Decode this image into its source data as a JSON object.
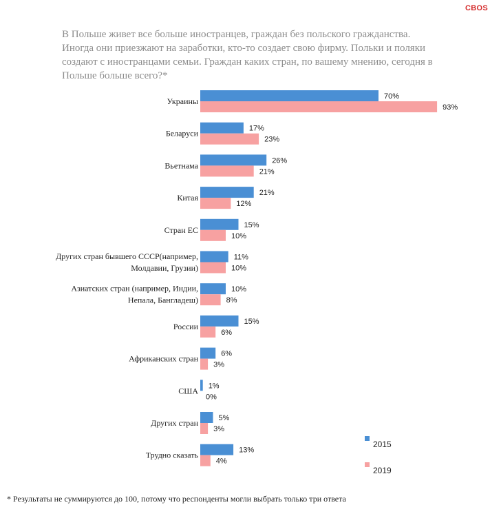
{
  "brand": "CBOS",
  "question": "В Польше живет все больше иностранцев, граждан без польского гражданства. Иногда они приезжают на заработки, кто-то создает свою фирму. Польки и поляки создают с иностранцами семьи. Граждан каких стран, по вашему мнению, сегодня в Польше больше всего?*",
  "footnote": "*  Результаты не суммируются до 100, потому что респонденты могли выбрать только три ответа",
  "colors": {
    "s2015": "#4a8fd4",
    "s2019": "#f7a1a1"
  },
  "chart_data": {
    "type": "bar",
    "orientation": "horizontal",
    "categories": [
      [
        "Украины"
      ],
      [
        "Беларуси"
      ],
      [
        "Вьетнама"
      ],
      [
        "Китая"
      ],
      [
        "Стран ЕС"
      ],
      [
        "Других стран бывшего СССР(например,",
        "Молдавии, Грузии)"
      ],
      [
        "Азиатских стран (например, Индии,",
        "Непала, Бангладеш)"
      ],
      [
        "России"
      ],
      [
        "Африканских стран"
      ],
      [
        "США"
      ],
      [
        "Других стран"
      ],
      [
        "Трудно сказать"
      ]
    ],
    "series": [
      {
        "name": "2015",
        "values": [
          70,
          17,
          26,
          21,
          15,
          11,
          10,
          15,
          6,
          1,
          5,
          13
        ]
      },
      {
        "name": "2019",
        "values": [
          93,
          23,
          21,
          12,
          10,
          10,
          8,
          6,
          3,
          0,
          3,
          4
        ]
      }
    ],
    "value_suffix": "%",
    "xlim": [
      0,
      100
    ],
    "grid": false,
    "legend": "bottom-right"
  }
}
